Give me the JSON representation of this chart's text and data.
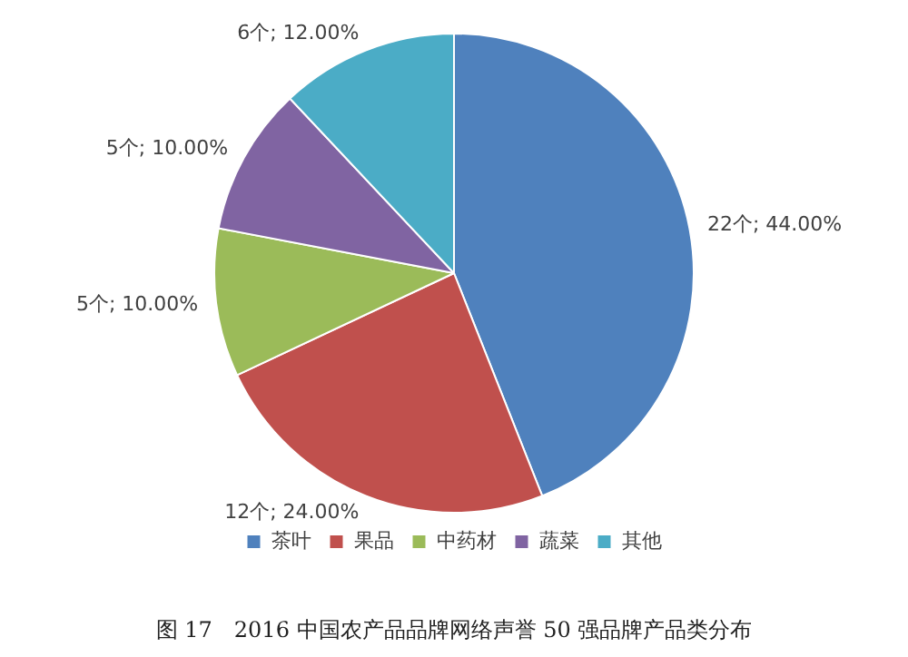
{
  "chart_data": {
    "type": "pie",
    "categories": [
      "茶叶",
      "果品",
      "中药材",
      "蔬菜",
      "其他"
    ],
    "values": [
      22,
      12,
      5,
      5,
      6
    ],
    "colors": [
      "#4f81bd",
      "#c0504d",
      "#9bbb59",
      "#8064a2",
      "#4bacc6"
    ],
    "value_labels": [
      "22个; 44.00%",
      "12个; 24.00%",
      "5个; 10.00%",
      "5个; 10.00%",
      "6个; 12.00%"
    ],
    "legend": "bottom",
    "annotations": [
      "图 17　2016 中国农产品品牌网络声誉 50 强品牌产品类分布"
    ]
  }
}
